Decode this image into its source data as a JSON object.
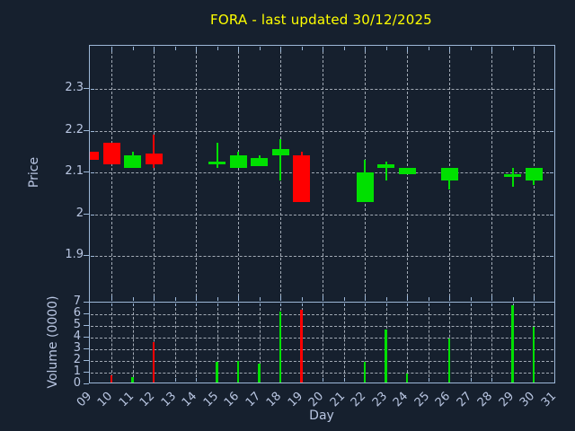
{
  "chart_data": {
    "type": "candlestick",
    "title": "FORA - last updated 30/12/2025",
    "xlabel": "Day",
    "x_tick_labels": [
      "09",
      "10",
      "11",
      "12",
      "13",
      "14",
      "15",
      "16",
      "17",
      "18",
      "19",
      "20",
      "21",
      "22",
      "23",
      "24",
      "25",
      "26",
      "27",
      "28",
      "29",
      "30",
      "31"
    ],
    "grid": true,
    "legend": "none",
    "panels": [
      {
        "name": "price",
        "ylabel": "Price",
        "ylim": [
          1.79,
          2.4
        ],
        "ytick_values": [
          2.3,
          2.2,
          2.1,
          2.0,
          1.9
        ],
        "ytick_labels": [
          "2.3",
          "2.2",
          "2.1",
          "2",
          "1.9"
        ]
      },
      {
        "name": "volume",
        "ylabel": "Volume (0000)",
        "ylim": [
          0,
          7
        ],
        "ytick_values": [
          7,
          6,
          5,
          4,
          3,
          2,
          1,
          0
        ],
        "ytick_labels": [
          "7",
          "6",
          "5",
          "4",
          "3",
          "2",
          "1",
          "0"
        ]
      }
    ],
    "candles": [
      {
        "day": 9,
        "open": 2.15,
        "high": 2.15,
        "low": 2.13,
        "close": 2.13,
        "volume": 0
      },
      {
        "day": 10,
        "open": 2.17,
        "high": 2.17,
        "low": 2.12,
        "close": 2.12,
        "volume": 0.8
      },
      {
        "day": 11,
        "open": 2.11,
        "high": 2.15,
        "low": 2.11,
        "close": 2.14,
        "volume": 0.6
      },
      {
        "day": 12,
        "open": 2.145,
        "high": 2.19,
        "low": 2.11,
        "close": 2.12,
        "volume": 3.6
      },
      {
        "day": 15,
        "open": 2.125,
        "high": 2.17,
        "low": 2.11,
        "close": 2.125,
        "volume": 1.9
      },
      {
        "day": 16,
        "open": 2.11,
        "high": 2.15,
        "low": 2.11,
        "close": 2.14,
        "volume": 2.0
      },
      {
        "day": 17,
        "open": 2.115,
        "high": 2.14,
        "low": 2.115,
        "close": 2.135,
        "volume": 1.8
      },
      {
        "day": 18,
        "open": 2.14,
        "high": 2.18,
        "low": 2.08,
        "close": 2.155,
        "volume": 6.2
      },
      {
        "day": 19,
        "open": 2.14,
        "high": 2.15,
        "low": 2.03,
        "close": 2.03,
        "volume": 6.4
      },
      {
        "day": 22,
        "open": 2.03,
        "high": 2.13,
        "low": 2.03,
        "close": 2.1,
        "volume": 1.9
      },
      {
        "day": 23,
        "open": 2.11,
        "high": 2.125,
        "low": 2.08,
        "close": 2.12,
        "volume": 4.7
      },
      {
        "day": 24,
        "open": 2.095,
        "high": 2.11,
        "low": 2.095,
        "close": 2.11,
        "volume": 0.9
      },
      {
        "day": 26,
        "open": 2.08,
        "high": 2.11,
        "low": 2.06,
        "close": 2.11,
        "volume": 3.9
      },
      {
        "day": 29,
        "open": 2.095,
        "high": 2.11,
        "low": 2.065,
        "close": 2.095,
        "volume": 6.8
      },
      {
        "day": 30,
        "open": 2.08,
        "high": 2.11,
        "low": 2.07,
        "close": 2.11,
        "volume": 4.9
      }
    ],
    "colors": {
      "background": "#16202e",
      "axis": "#9db8d8",
      "label": "#b9c6e2",
      "grid": "#aab2bd",
      "title": "#ffff00",
      "up": "#00e000",
      "down": "#ff0000"
    }
  }
}
